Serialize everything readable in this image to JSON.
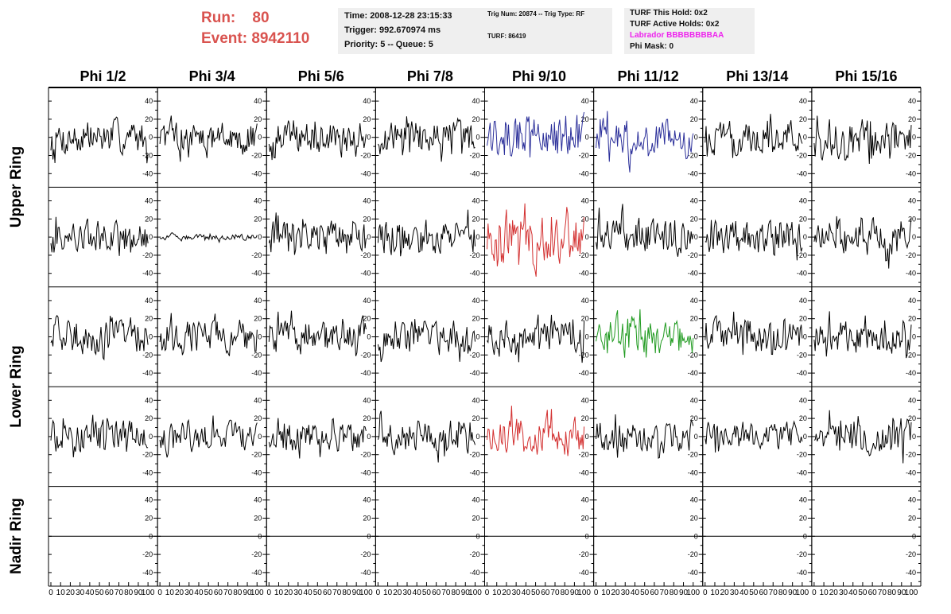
{
  "header": {
    "run_label": "Run:",
    "run_value": "80",
    "event_label": "Event:",
    "event_value": "8942110"
  },
  "info_box_1": {
    "time": "Time: 2008-12-28 23:15:33",
    "trigger": "Trigger: 992.670974 ms",
    "priority": "Priority: 5 -- Queue: 5"
  },
  "info_box_2": {
    "trig": "Trig Num: 20874 -- Trig Type: RF",
    "turf": "TURF: 86419"
  },
  "info_box_3": {
    "this_hold": "TURF This Hold: 0x2",
    "active_holds": "TURF Active Holds: 0x2",
    "labrador": "Labrador BBBBBBBBAA",
    "phi_mask": "Phi Mask: 0"
  },
  "columns": [
    "Phi 1/2",
    "Phi 3/4",
    "Phi 5/6",
    "Phi 7/8",
    "Phi 9/10",
    "Phi 11/12",
    "Phi 13/14",
    "Phi 15/16"
  ],
  "row_labels": [
    {
      "text": "Upper Ring",
      "rows": [
        0,
        1
      ]
    },
    {
      "text": "Lower Ring",
      "rows": [
        2,
        3
      ]
    },
    {
      "text": "Nadir Ring",
      "rows": [
        4,
        4
      ]
    }
  ],
  "colors": {
    "labrador": "#ee22ee",
    "run_text": "#d9534f",
    "trace_default": "#000000",
    "trace_blue": "#2b2f9a",
    "trace_red": "#d33030",
    "trace_green": "#1f9a1f"
  },
  "chart_data": {
    "type": "line",
    "layout": "5 rows x 8 columns of waveform panels",
    "x_range": [
      0,
      100
    ],
    "x_tick_labels": [
      "0",
      "10",
      "20",
      "30",
      "40",
      "50",
      "60",
      "70",
      "80",
      "90",
      "100"
    ],
    "y_range": [
      -55,
      55
    ],
    "y_tick_labels": [
      "40",
      "20",
      "0",
      "-20",
      "-40"
    ],
    "samples_per_trace": 96,
    "panel_traces": [
      [
        {
          "color": "black",
          "amplitude": 18,
          "flat": false
        },
        {
          "color": "black",
          "amplitude": 16,
          "flat": false
        },
        {
          "color": "black",
          "amplitude": 17,
          "flat": false
        },
        {
          "color": "black",
          "amplitude": 18,
          "flat": false
        },
        {
          "color": "blue",
          "amplitude": 24,
          "flat": false
        },
        {
          "color": "blue",
          "amplitude": 19,
          "flat": false
        },
        {
          "color": "black",
          "amplitude": 17,
          "flat": false
        },
        {
          "color": "black",
          "amplitude": 20,
          "flat": false
        }
      ],
      [
        {
          "color": "black",
          "amplitude": 17,
          "flat": false
        },
        {
          "color": "black",
          "amplitude": 3,
          "flat": false
        },
        {
          "color": "black",
          "amplitude": 18,
          "flat": false
        },
        {
          "color": "black",
          "amplitude": 19,
          "flat": false
        },
        {
          "color": "red",
          "amplitude": 25,
          "flat": false
        },
        {
          "color": "black",
          "amplitude": 19,
          "flat": false
        },
        {
          "color": "black",
          "amplitude": 18,
          "flat": false
        },
        {
          "color": "black",
          "amplitude": 20,
          "flat": false
        }
      ],
      [
        {
          "color": "black",
          "amplitude": 19,
          "flat": false
        },
        {
          "color": "black",
          "amplitude": 18,
          "flat": false
        },
        {
          "color": "black",
          "amplitude": 19,
          "flat": false
        },
        {
          "color": "black",
          "amplitude": 18,
          "flat": false
        },
        {
          "color": "black",
          "amplitude": 17,
          "flat": false
        },
        {
          "color": "green",
          "amplitude": 22,
          "flat": false
        },
        {
          "color": "black",
          "amplitude": 18,
          "flat": false
        },
        {
          "color": "black",
          "amplitude": 17,
          "flat": false
        }
      ],
      [
        {
          "color": "black",
          "amplitude": 16,
          "flat": false
        },
        {
          "color": "black",
          "amplitude": 15,
          "flat": false
        },
        {
          "color": "black",
          "amplitude": 16,
          "flat": false
        },
        {
          "color": "black",
          "amplitude": 17,
          "flat": false
        },
        {
          "color": "red",
          "amplitude": 20,
          "flat": false
        },
        {
          "color": "black",
          "amplitude": 17,
          "flat": false
        },
        {
          "color": "black",
          "amplitude": 15,
          "flat": false
        },
        {
          "color": "black",
          "amplitude": 20,
          "flat": false
        }
      ],
      [
        {
          "color": "black",
          "amplitude": 0,
          "flat": true
        },
        {
          "color": "black",
          "amplitude": 0,
          "flat": true
        },
        {
          "color": "black",
          "amplitude": 0,
          "flat": true
        },
        {
          "color": "black",
          "amplitude": 0,
          "flat": true
        },
        {
          "color": "black",
          "amplitude": 0,
          "flat": true
        },
        {
          "color": "black",
          "amplitude": 0,
          "flat": true
        },
        {
          "color": "black",
          "amplitude": 0,
          "flat": true
        },
        {
          "color": "black",
          "amplitude": 0,
          "flat": true
        }
      ]
    ]
  }
}
